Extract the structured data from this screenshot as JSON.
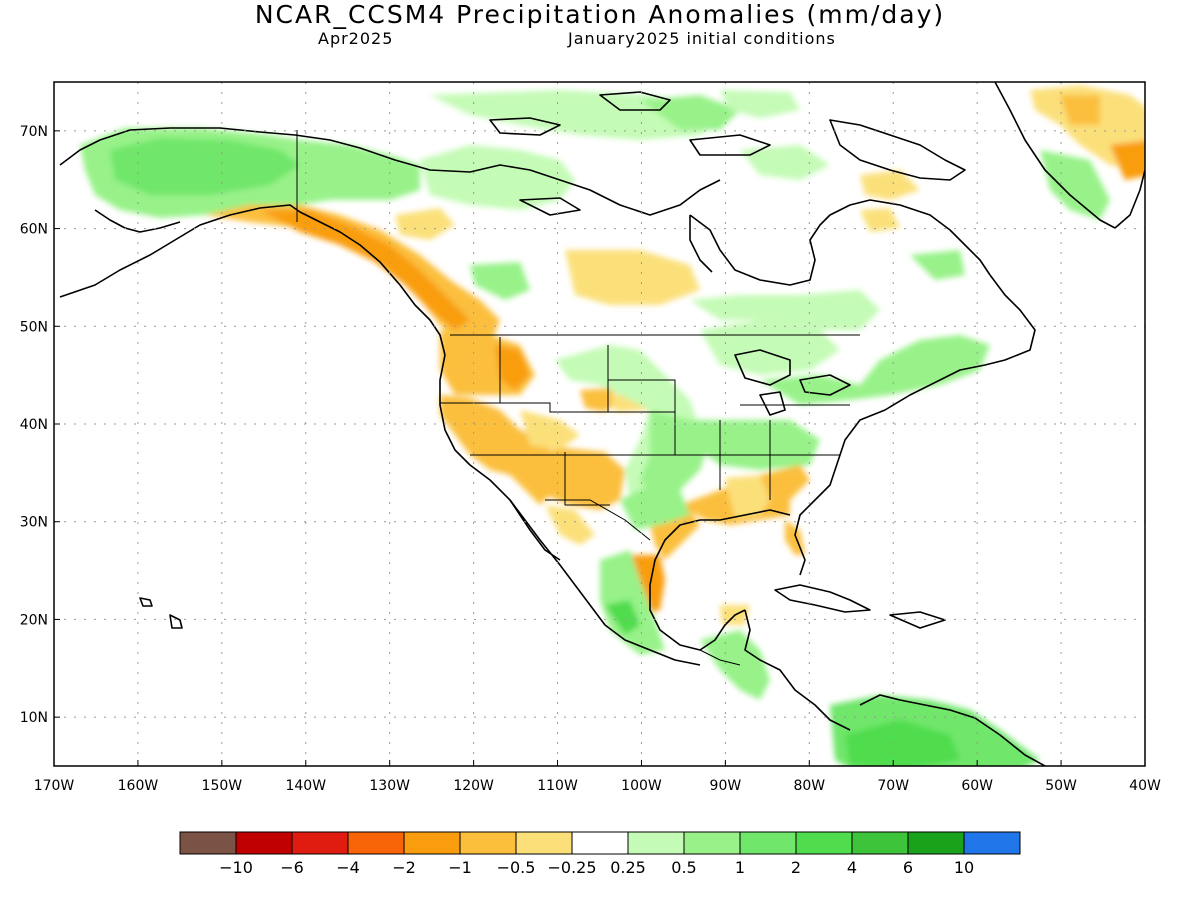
{
  "title": "NCAR_CCSM4 Precipitation Anomalies (mm/day)",
  "subtitle_left": "Apr2025",
  "subtitle_right": "January2025 initial conditions",
  "lon_ticks": [
    "170W",
    "160W",
    "150W",
    "140W",
    "130W",
    "120W",
    "110W",
    "100W",
    "90W",
    "80W",
    "70W",
    "60W",
    "50W",
    "40W"
  ],
  "lat_ticks": [
    "10N",
    "20N",
    "30N",
    "40N",
    "50N",
    "60N",
    "70N"
  ],
  "colorbar": {
    "colors": [
      "#7b5246",
      "#c00000",
      "#e01b10",
      "#f86408",
      "#f99d0e",
      "#fbbf3c",
      "#fbe07a",
      "#ffffff",
      "#c4fbb6",
      "#98f289",
      "#70e66b",
      "#4fdc4d",
      "#3ec43b",
      "#19a21a",
      "#2075e8"
    ],
    "labels": [
      "−10",
      "−6",
      "−4",
      "−2",
      "−1",
      "−0.5",
      "−0.25",
      "0.25",
      "0.5",
      "1",
      "2",
      "4",
      "6",
      "10"
    ]
  },
  "chart_data": {
    "type": "heatmap",
    "title": "NCAR_CCSM4 Precipitation Anomalies (mm/day)",
    "valid_month": "Apr2025",
    "initial_conditions": "January2025 initial conditions",
    "lon_range": [
      -170,
      -40
    ],
    "lat_range": [
      5,
      75
    ],
    "units": "mm/day",
    "anomaly_regions": [
      {
        "lon": [
          -165,
          -130
        ],
        "lat": [
          62,
          70
        ],
        "value_class": "0.5 to 1"
      },
      {
        "lon": [
          -120,
          -100
        ],
        "lat": [
          58,
          67
        ],
        "value_class": "0.25 to 0.5"
      },
      {
        "lon": [
          -95,
          -70
        ],
        "lat": [
          63,
          72
        ],
        "value_class": "0.25 to 0.5"
      },
      {
        "lon": [
          -145,
          -120
        ],
        "lat": [
          54,
          61
        ],
        "value_class": "-2 to -1"
      },
      {
        "lon": [
          -128,
          -114
        ],
        "lat": [
          43,
          52
        ],
        "value_class": "-1 to -0.5"
      },
      {
        "lon": [
          -124,
          -117
        ],
        "lat": [
          34,
          42
        ],
        "value_class": "-1 to -0.5"
      },
      {
        "lon": [
          -114,
          -100
        ],
        "lat": [
          31,
          37
        ],
        "value_class": "-1 to -0.5"
      },
      {
        "lon": [
          -110,
          -103
        ],
        "lat": [
          50,
          56
        ],
        "value_class": "-0.5 to -0.25"
      },
      {
        "lon": [
          -100,
          -88
        ],
        "lat": [
          34,
          42
        ],
        "value_class": "0.5 to 1"
      },
      {
        "lon": [
          -95,
          -80
        ],
        "lat": [
          43,
          49
        ],
        "value_class": "0.25 to 0.5"
      },
      {
        "lon": [
          -92,
          -82
        ],
        "lat": [
          30,
          34
        ],
        "value_class": "-0.5 to -0.25"
      },
      {
        "lon": [
          -98,
          -95
        ],
        "lat": [
          21,
          27
        ],
        "value_class": "-2 to -1"
      },
      {
        "lon": [
          -106,
          -97
        ],
        "lat": [
          16,
          25
        ],
        "value_class": "0.5 to 1"
      },
      {
        "lon": [
          -78,
          -60
        ],
        "lat": [
          4,
          11
        ],
        "value_class": "1 to 2"
      },
      {
        "lon": [
          -52,
          -38
        ],
        "lat": [
          60,
          75
        ],
        "value_class": "-0.5 to -0.25"
      }
    ]
  }
}
